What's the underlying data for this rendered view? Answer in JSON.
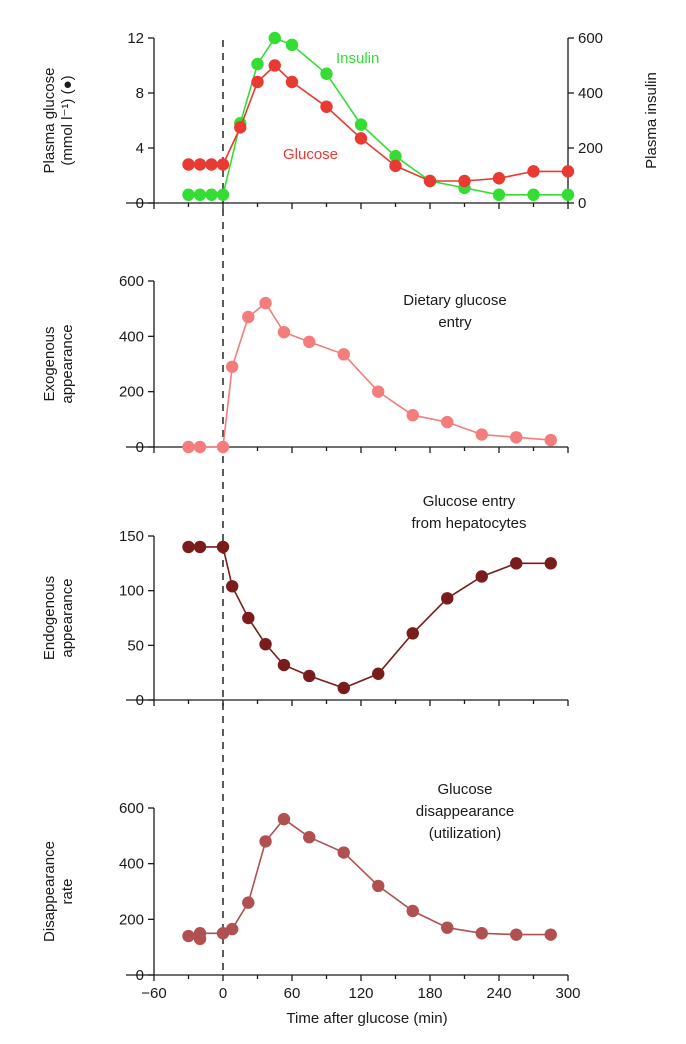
{
  "chart_data": [
    {
      "id": "p1",
      "type": "line",
      "ylabel": [
        "Plasma glucose",
        "(mmol l⁻¹) (●)"
      ],
      "y2label": "Plasma insulin",
      "ylim": [
        0,
        12
      ],
      "y2lim": [
        0,
        600
      ],
      "yticks": [
        0,
        4,
        8,
        12
      ],
      "y2ticks": [
        0,
        200,
        400,
        600
      ],
      "series": [
        {
          "name": "Glucose",
          "axis": "left",
          "color": "#e83a33",
          "x": [
            -30,
            -20,
            -10,
            0,
            15,
            30,
            45,
            60,
            90,
            120,
            150,
            180,
            210,
            240,
            270,
            300
          ],
          "y": [
            2.8,
            2.8,
            2.8,
            2.8,
            5.5,
            8.8,
            10.0,
            8.8,
            7.0,
            4.7,
            2.7,
            1.6,
            1.6,
            1.8,
            2.3,
            2.3
          ]
        },
        {
          "name": "Insulin",
          "axis": "right",
          "color": "#33dd33",
          "x": [
            -30,
            -20,
            -10,
            0,
            15,
            30,
            45,
            60,
            90,
            120,
            150,
            180,
            210,
            240,
            270,
            300
          ],
          "y": [
            30,
            30,
            30,
            30,
            290,
            505,
            600,
            575,
            470,
            285,
            170,
            80,
            55,
            30,
            30,
            30
          ]
        }
      ]
    },
    {
      "id": "p2",
      "type": "line",
      "ylabel": [
        "Exogenous",
        "appearance"
      ],
      "ylim": [
        0,
        600
      ],
      "yticks": [
        0,
        200,
        400,
        600
      ],
      "annotation": [
        "Dietary glucose",
        "entry"
      ],
      "series": [
        {
          "color": "#f47c7c",
          "x": [
            -30,
            -20,
            0,
            8,
            22,
            37,
            53,
            75,
            105,
            135,
            165,
            195,
            225,
            255,
            285
          ],
          "y": [
            0,
            0,
            0,
            290,
            470,
            520,
            415,
            380,
            335,
            200,
            115,
            90,
            45,
            35,
            25
          ]
        }
      ]
    },
    {
      "id": "p3",
      "type": "line",
      "ylabel": [
        "Endogenous",
        "appearance"
      ],
      "ylim": [
        0,
        150
      ],
      "yticks": [
        0,
        50,
        100,
        150
      ],
      "annotation": [
        "Glucose entry",
        "from hepatocytes"
      ],
      "series": [
        {
          "color": "#7b1c1c",
          "x": [
            -30,
            -20,
            0,
            8,
            22,
            37,
            53,
            75,
            105,
            135,
            165,
            195,
            225,
            255,
            285
          ],
          "y": [
            140,
            140,
            140,
            104,
            75,
            51,
            32,
            22,
            11,
            24,
            61,
            93,
            113,
            125,
            125
          ]
        }
      ]
    },
    {
      "id": "p4",
      "type": "line",
      "ylabel": [
        "Disappearance",
        "rate"
      ],
      "ylim": [
        0,
        600
      ],
      "yticks": [
        0,
        200,
        400,
        600
      ],
      "annotation": [
        "Glucose",
        "disappearance",
        "(utilization)"
      ],
      "xticks": [
        -60,
        0,
        60,
        120,
        180,
        240,
        300
      ],
      "xlabel": "Time after glucose (min)",
      "series": [
        {
          "color": "#b05050",
          "x": [
            -30,
            -20,
            -20,
            0,
            8,
            22,
            37,
            53,
            75,
            105,
            135,
            165,
            195,
            225,
            255,
            285
          ],
          "y": [
            140,
            130,
            150,
            150,
            165,
            260,
            480,
            560,
            495,
            440,
            320,
            230,
            170,
            150,
            145,
            145
          ]
        }
      ]
    }
  ]
}
